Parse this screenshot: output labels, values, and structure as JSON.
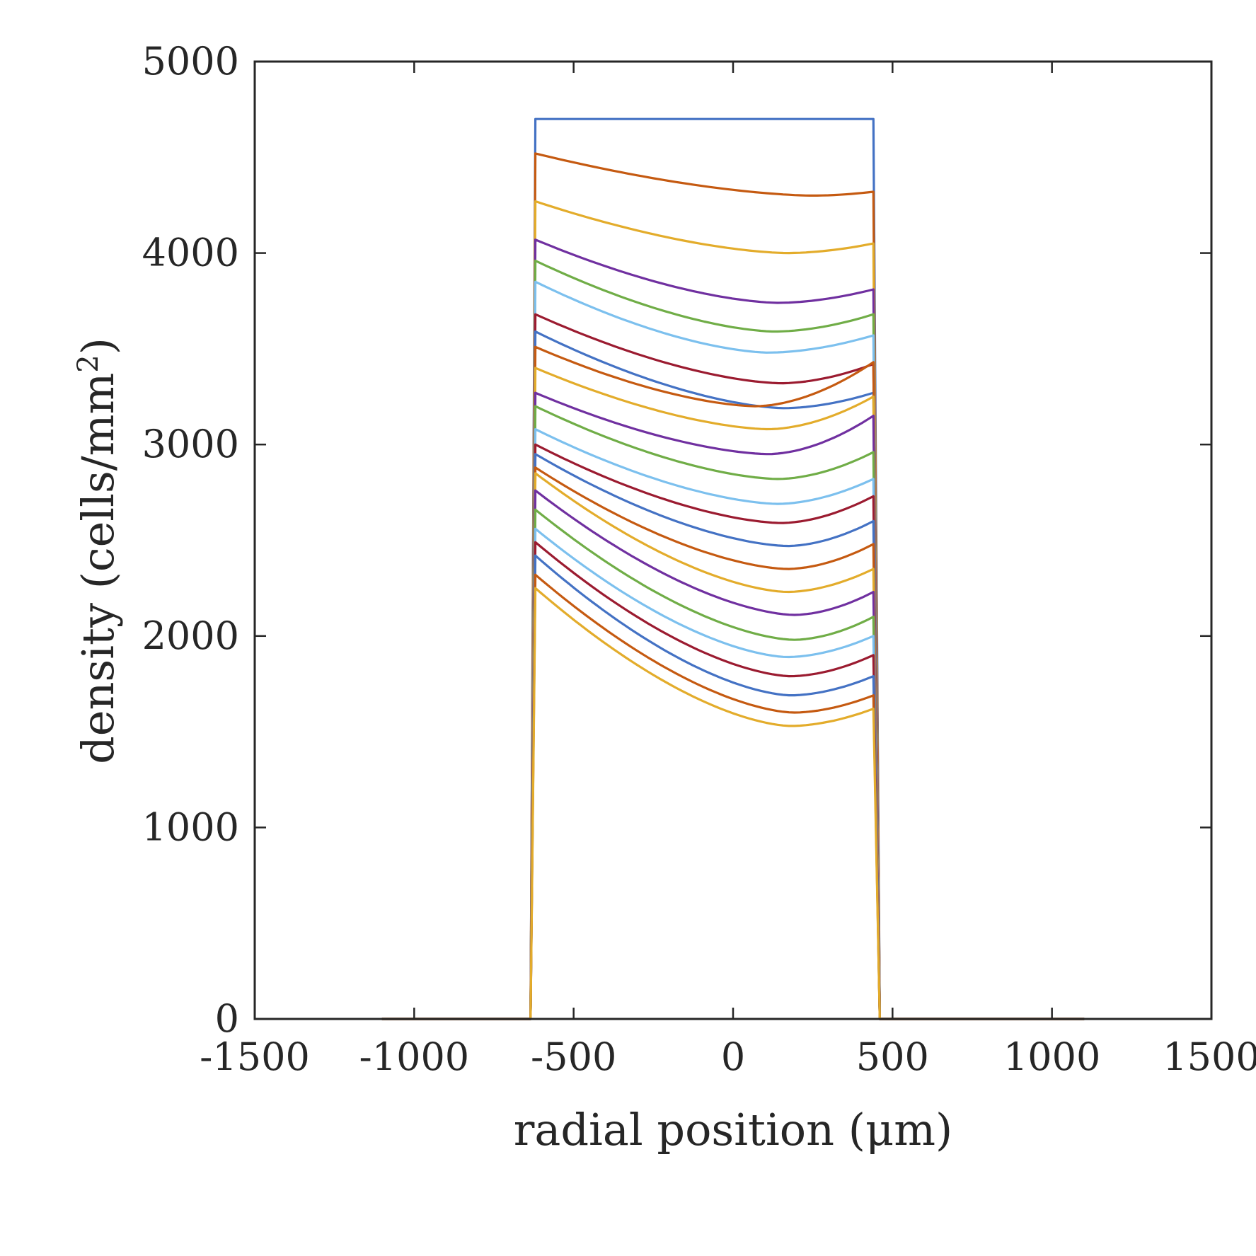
{
  "chart_data": {
    "type": "line",
    "title": "",
    "xlabel": "radial position (μm)",
    "ylabel_main": "density (cells/mm",
    "ylabel_sup": "2",
    "ylabel_close": ")",
    "xlim": [
      -1500,
      1500
    ],
    "ylim": [
      0,
      5000
    ],
    "xticks": [
      -1500,
      -1000,
      -500,
      0,
      500,
      1000,
      1500
    ],
    "yticks": [
      0,
      1000,
      2000,
      3000,
      4000,
      5000
    ],
    "xtick_labels": [
      "-1500",
      "-1000",
      "-500",
      "0",
      "500",
      "1000",
      "1500"
    ],
    "ytick_labels": [
      "0",
      "1000",
      "2000",
      "3000",
      "4000",
      "5000"
    ],
    "grid": false,
    "legend": "none",
    "domain_x": [
      -1100,
      1100
    ],
    "support_left": [
      -635,
      -620
    ],
    "support_right": [
      440,
      460
    ],
    "series": [
      {
        "color": "#4472C4",
        "y_left": 4700,
        "y_mid": 4700,
        "x_min": 0,
        "y_min": 4700,
        "y_right": 4700
      },
      {
        "color": "#C55A11",
        "y_left": 4520,
        "y_mid": 4350,
        "x_min": 250,
        "y_min": 4300,
        "y_right": 4320
      },
      {
        "color": "#E3AC2B",
        "y_left": 4270,
        "y_mid": 4040,
        "x_min": 170,
        "y_min": 4000,
        "y_right": 4050
      },
      {
        "color": "#7030A0",
        "y_left": 4070,
        "y_mid": 3780,
        "x_min": 140,
        "y_min": 3740,
        "y_right": 3810
      },
      {
        "color": "#70AD47",
        "y_left": 3960,
        "y_mid": 3630,
        "x_min": 130,
        "y_min": 3590,
        "y_right": 3680
      },
      {
        "color": "#7CC0EE",
        "y_left": 3850,
        "y_mid": 3510,
        "x_min": 110,
        "y_min": 3480,
        "y_right": 3570
      },
      {
        "color": "#9B1B30",
        "y_left": 3680,
        "y_mid": 3360,
        "x_min": 150,
        "y_min": 3320,
        "y_right": 3420
      },
      {
        "color": "#4472C4",
        "y_left": 3590,
        "y_mid": 3230,
        "x_min": 160,
        "y_min": 3190,
        "y_right": 3270
      },
      {
        "color": "#C55A11",
        "y_left": 3510,
        "y_mid": 3210,
        "x_min": 70,
        "y_min": 3200,
        "y_right": 3430
      },
      {
        "color": "#E3AC2B",
        "y_left": 3400,
        "y_mid": 3120,
        "x_min": 110,
        "y_min": 3080,
        "y_right": 3250
      },
      {
        "color": "#7030A0",
        "y_left": 3270,
        "y_mid": 2990,
        "x_min": 110,
        "y_min": 2950,
        "y_right": 3150
      },
      {
        "color": "#70AD47",
        "y_left": 3200,
        "y_mid": 2880,
        "x_min": 140,
        "y_min": 2820,
        "y_right": 2960
      },
      {
        "color": "#7CC0EE",
        "y_left": 3080,
        "y_mid": 2730,
        "x_min": 140,
        "y_min": 2690,
        "y_right": 2820
      },
      {
        "color": "#9B1B30",
        "y_left": 3000,
        "y_mid": 2640,
        "x_min": 150,
        "y_min": 2590,
        "y_right": 2730
      },
      {
        "color": "#4472C4",
        "y_left": 2950,
        "y_mid": 2520,
        "x_min": 170,
        "y_min": 2470,
        "y_right": 2600
      },
      {
        "color": "#C55A11",
        "y_left": 2880,
        "y_mid": 2400,
        "x_min": 170,
        "y_min": 2350,
        "y_right": 2480
      },
      {
        "color": "#E3AC2B",
        "y_left": 2850,
        "y_mid": 2280,
        "x_min": 170,
        "y_min": 2230,
        "y_right": 2350
      },
      {
        "color": "#7030A0",
        "y_left": 2760,
        "y_mid": 2160,
        "x_min": 190,
        "y_min": 2110,
        "y_right": 2230
      },
      {
        "color": "#70AD47",
        "y_left": 2660,
        "y_mid": 2030,
        "x_min": 190,
        "y_min": 1980,
        "y_right": 2100
      },
      {
        "color": "#7CC0EE",
        "y_left": 2560,
        "y_mid": 1940,
        "x_min": 170,
        "y_min": 1890,
        "y_right": 2000
      },
      {
        "color": "#9B1B30",
        "y_left": 2490,
        "y_mid": 1840,
        "x_min": 180,
        "y_min": 1790,
        "y_right": 1900
      },
      {
        "color": "#4472C4",
        "y_left": 2420,
        "y_mid": 1740,
        "x_min": 180,
        "y_min": 1690,
        "y_right": 1790
      },
      {
        "color": "#C55A11",
        "y_left": 2320,
        "y_mid": 1650,
        "x_min": 190,
        "y_min": 1600,
        "y_right": 1690
      },
      {
        "color": "#E3AC2B",
        "y_left": 2250,
        "y_mid": 1580,
        "x_min": 180,
        "y_min": 1530,
        "y_right": 1620
      }
    ]
  }
}
